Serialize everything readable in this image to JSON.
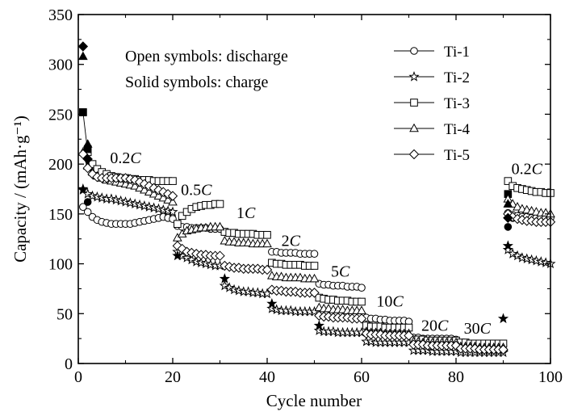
{
  "chart_data": {
    "type": "scatter",
    "xlabel": "Cycle number",
    "ylabel": "Capacity / (mAh·g⁻¹)",
    "xlim": [
      0,
      100
    ],
    "ylim": [
      0,
      350
    ],
    "x_ticks": [
      "0",
      "20",
      "40",
      "60",
      "80",
      "100"
    ],
    "y_ticks": [
      "0",
      "50",
      "100",
      "150",
      "200",
      "250",
      "300",
      "350"
    ],
    "grid": false,
    "legend_position": "top-right",
    "annotations": [
      "Open symbols: discharge",
      "Solid symbols: charge"
    ],
    "rate_labels": [
      {
        "num": "0.2",
        "unit": "C",
        "x": 10,
        "y": 201
      },
      {
        "num": "0.5",
        "unit": "C",
        "x": 25,
        "y": 169
      },
      {
        "num": "1",
        "unit": "C",
        "x": 35.5,
        "y": 146
      },
      {
        "num": "2",
        "unit": "C",
        "x": 45,
        "y": 118
      },
      {
        "num": "5",
        "unit": "C",
        "x": 55.5,
        "y": 87
      },
      {
        "num": "10",
        "unit": "C",
        "x": 66,
        "y": 57
      },
      {
        "num": "20",
        "unit": "C",
        "x": 75.5,
        "y": 33
      },
      {
        "num": "30",
        "unit": "C",
        "x": 84.5,
        "y": 30
      },
      {
        "num": "0.2",
        "unit": "C",
        "x": 95,
        "y": 190
      }
    ],
    "series": [
      {
        "name": "Ti-1",
        "marker": "circle",
        "segments": [
          {
            "range": [
              1,
              20
            ],
            "discharge": [
              157,
              152,
              147,
              144,
              142,
              141,
              140,
              140,
              140,
              140,
              140,
              141,
              142,
              143,
              144,
              145,
              146,
              147,
              146,
              145
            ]
          },
          {
            "range": [
              21,
              30
            ],
            "discharge": [
              138,
              137,
              137,
              136,
              136,
              136,
              136,
              135,
              135,
              135
            ]
          },
          {
            "range": [
              31,
              40
            ],
            "discharge": [
              132,
              131,
              131,
              130,
              130,
              130,
              130,
              129,
              129,
              129
            ]
          },
          {
            "range": [
              41,
              50
            ],
            "discharge": [
              112,
              112,
              111,
              111,
              111,
              111,
              110,
              110,
              110,
              110
            ]
          },
          {
            "range": [
              51,
              60
            ],
            "discharge": [
              80,
              79,
              79,
              78,
              78,
              78,
              77,
              77,
              77,
              76
            ]
          },
          {
            "range": [
              61,
              70
            ],
            "discharge": [
              46,
              45,
              45,
              44,
              44,
              43,
              43,
              43,
              43,
              42
            ]
          },
          {
            "range": [
              71,
              80
            ],
            "discharge": [
              26,
              26,
              25,
              25,
              25,
              25,
              25,
              25,
              25,
              24
            ]
          },
          {
            "range": [
              81,
              90
            ],
            "discharge": [
              19,
              19,
              19,
              18,
              18,
              18,
              18,
              18,
              18,
              18
            ]
          },
          {
            "range": [
              91,
              100
            ],
            "discharge": [
              151,
              149,
              148,
              147,
              147,
              146,
              146,
              146,
              146,
              146
            ]
          }
        ],
        "charge": [
          [
            2,
            162
          ],
          [
            91,
            137
          ],
          [
            92,
            146
          ]
        ]
      },
      {
        "name": "Ti-2",
        "marker": "star",
        "segments": [
          {
            "range": [
              1,
              20
            ],
            "discharge": [
              174,
              170,
              168,
              167,
              166,
              165,
              165,
              164,
              163,
              162,
              161,
              160,
              159,
              158,
              157,
              156,
              155,
              154,
              153,
              152
            ]
          },
          {
            "range": [
              21,
              30
            ],
            "discharge": [
              112,
              108,
              106,
              104,
              102,
              101,
              100,
              99,
              98,
              98
            ]
          },
          {
            "range": [
              31,
              40
            ],
            "discharge": [
              78,
              76,
              74,
              73,
              72,
              72,
              71,
              71,
              70,
              70
            ]
          },
          {
            "range": [
              41,
              50
            ],
            "discharge": [
              55,
              54,
              53,
              53,
              53,
              52,
              52,
              52,
              52,
              52
            ]
          },
          {
            "range": [
              51,
              60
            ],
            "discharge": [
              33,
              32,
              32,
              32,
              31,
              31,
              31,
              31,
              31,
              31
            ]
          },
          {
            "range": [
              61,
              70
            ],
            "discharge": [
              22,
              22,
              21,
              21,
              21,
              21,
              21,
              21,
              21,
              21
            ]
          },
          {
            "range": [
              71,
              80
            ],
            "discharge": [
              13,
              13,
              13,
              13,
              12,
              12,
              12,
              12,
              12,
              12
            ]
          },
          {
            "range": [
              81,
              90
            ],
            "discharge": [
              11,
              11,
              11,
              11,
              11,
              11,
              11,
              11,
              11,
              11
            ]
          },
          {
            "range": [
              91,
              100
            ],
            "discharge": [
              114,
              110,
              108,
              106,
              105,
              104,
              103,
              102,
              101,
              100
            ]
          }
        ],
        "charge": [
          [
            1,
            175
          ],
          [
            21,
            108
          ],
          [
            31,
            85
          ],
          [
            41,
            60
          ],
          [
            51,
            38
          ],
          [
            90,
            45
          ],
          [
            91,
            118
          ]
        ]
      },
      {
        "name": "Ti-3",
        "marker": "square",
        "segments": [
          {
            "range": [
              1,
              20
            ],
            "discharge": [
              252,
              212,
              200,
              195,
              192,
              190,
              188,
              187,
              186,
              186,
              185,
              185,
              184,
              184,
              184,
              183,
              183,
              183,
              183,
              183
            ]
          },
          {
            "range": [
              21,
              30
            ],
            "discharge": [
              140,
              148,
              152,
              155,
              157,
              158,
              159,
              159,
              160,
              160
            ]
          },
          {
            "range": [
              31,
              40
            ],
            "discharge": [
              132,
              131,
              131,
              130,
              130,
              130,
              130,
              129,
              129,
              129
            ]
          },
          {
            "range": [
              41,
              50
            ],
            "discharge": [
              101,
              100,
              100,
              99,
              99,
              99,
              99,
              98,
              98,
              98
            ]
          },
          {
            "range": [
              51,
              60
            ],
            "discharge": [
              66,
              65,
              64,
              64,
              63,
              63,
              63,
              62,
              62,
              62
            ]
          },
          {
            "range": [
              61,
              70
            ],
            "discharge": [
              38,
              37,
              37,
              37,
              36,
              36,
              36,
              36,
              36,
              36
            ]
          },
          {
            "range": [
              71,
              80
            ],
            "discharge": [
              24,
              24,
              24,
              23,
              23,
              23,
              23,
              23,
              23,
              23
            ]
          },
          {
            "range": [
              81,
              90
            ],
            "discharge": [
              21,
              21,
              20,
              20,
              20,
              20,
              20,
              20,
              20,
              20
            ]
          },
          {
            "range": [
              91,
              100
            ],
            "discharge": [
              183,
              178,
              176,
              175,
              174,
              173,
              172,
              172,
              171,
              171
            ]
          }
        ],
        "charge": [
          [
            1,
            252
          ],
          [
            2,
            215
          ],
          [
            91,
            170
          ]
        ]
      },
      {
        "name": "Ti-4",
        "marker": "triangle",
        "segments": [
          {
            "range": [
              1,
              20
            ],
            "discharge": [
              212,
              198,
              192,
              188,
              186,
              184,
              183,
              182,
              181,
              180,
              179,
              178,
              176,
              174,
              172,
              170,
              168,
              166,
              164,
              162
            ]
          },
          {
            "range": [
              21,
              30
            ],
            "discharge": [
              126,
              130,
              133,
              134,
              135,
              136,
              136,
              137,
              137,
              137
            ]
          },
          {
            "range": [
              31,
              40
            ],
            "discharge": [
              123,
              122,
              122,
              121,
              121,
              121,
              120,
              120,
              120,
              120
            ]
          },
          {
            "range": [
              41,
              50
            ],
            "discharge": [
              88,
              87,
              87,
              86,
              86,
              86,
              86,
              85,
              85,
              85
            ]
          },
          {
            "range": [
              51,
              60
            ],
            "discharge": [
              56,
              55,
              55,
              54,
              54,
              54,
              53,
              53,
              53,
              53
            ]
          },
          {
            "range": [
              61,
              70
            ],
            "discharge": [
              32,
              31,
              31,
              31,
              30,
              30,
              30,
              30,
              30,
              30
            ]
          },
          {
            "range": [
              71,
              80
            ],
            "discharge": [
              22,
              22,
              21,
              21,
              21,
              21,
              21,
              21,
              21,
              21
            ]
          },
          {
            "range": [
              81,
              90
            ],
            "discharge": [
              17,
              17,
              17,
              17,
              16,
              16,
              16,
              16,
              16,
              16
            ]
          },
          {
            "range": [
              91,
              100
            ],
            "discharge": [
              165,
              160,
              157,
              155,
              154,
              153,
              152,
              151,
              151,
              150
            ]
          }
        ],
        "charge": [
          [
            1,
            308
          ],
          [
            2,
            220
          ],
          [
            91,
            160
          ]
        ]
      },
      {
        "name": "Ti-5",
        "marker": "diamond",
        "segments": [
          {
            "range": [
              1,
              20
            ],
            "discharge": [
              210,
              196,
              190,
              187,
              186,
              186,
              186,
              186,
              186,
              186,
              185,
              184,
              182,
              180,
              178,
              176,
              174,
              172,
              170,
              168
            ]
          },
          {
            "range": [
              21,
              30
            ],
            "discharge": [
              118,
              115,
              112,
              111,
              110,
              109,
              109,
              108,
              108,
              108
            ]
          },
          {
            "range": [
              31,
              40
            ],
            "discharge": [
              98,
              97,
              96,
              96,
              95,
              95,
              95,
              95,
              94,
              94
            ]
          },
          {
            "range": [
              41,
              50
            ],
            "discharge": [
              74,
              73,
              73,
              72,
              72,
              72,
              71,
              71,
              71,
              71
            ]
          },
          {
            "range": [
              51,
              60
            ],
            "discharge": [
              48,
              47,
              47,
              46,
              46,
              46,
              46,
              45,
              45,
              45
            ]
          },
          {
            "range": [
              61,
              70
            ],
            "discharge": [
              30,
              29,
              29,
              29,
              28,
              28,
              28,
              28,
              28,
              28
            ]
          },
          {
            "range": [
              71,
              80
            ],
            "discharge": [
              19,
              19,
              19,
              18,
              18,
              18,
              18,
              18,
              18,
              18
            ]
          },
          {
            "range": [
              81,
              90
            ],
            "discharge": [
              15,
              15,
              15,
              15,
              14,
              14,
              14,
              14,
              14,
              14
            ]
          },
          {
            "range": [
              91,
              100
            ],
            "discharge": [
              150,
              147,
              145,
              144,
              143,
              143,
              142,
              142,
              142,
              142
            ]
          }
        ],
        "charge": [
          [
            1,
            318
          ],
          [
            2,
            205
          ],
          [
            91,
            146
          ]
        ]
      }
    ]
  }
}
